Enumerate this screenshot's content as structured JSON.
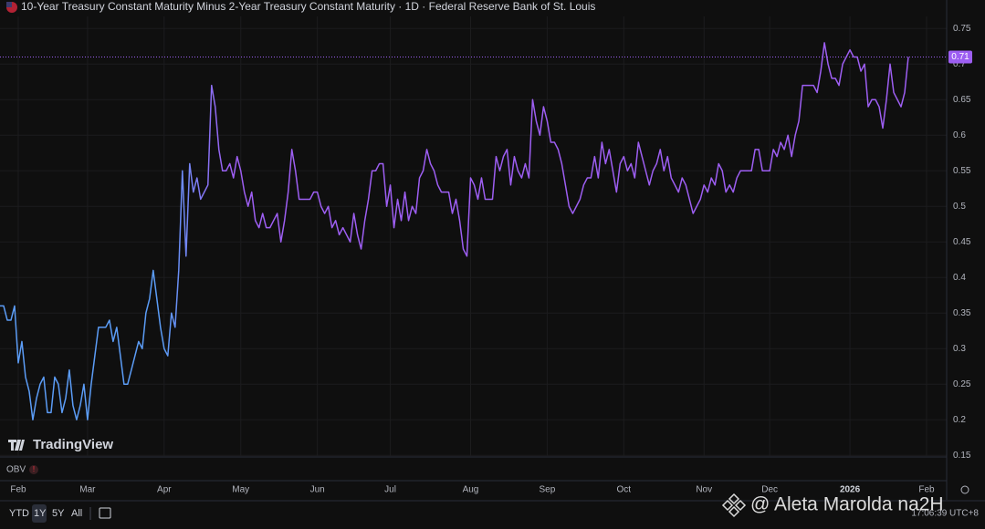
{
  "chart_data": {
    "type": "line",
    "title": "10-Year Treasury Constant Maturity Minus 2-Year Treasury Constant Maturity · 1D · Federal Reserve Bank of St. Louis",
    "brand": "TradingView",
    "indicator": "OBV",
    "ranges": [
      "YTD",
      "1Y",
      "5Y",
      "All"
    ],
    "clock": "17:06:39 UTC+8",
    "watermark": "@ Aleta Marolda na2H",
    "gradient": [
      "#5b9cf6",
      "#9d5ef2"
    ],
    "last_value": 0.71,
    "ylim": [
      0.149,
      0.767
    ],
    "yticks": [
      0.15,
      0.2,
      0.25,
      0.3,
      0.35,
      0.4,
      0.45,
      0.5,
      0.55,
      0.6,
      0.65,
      0.7,
      0.75
    ],
    "grid": true,
    "categories": [
      null,
      null,
      null,
      null,
      null,
      "Feb",
      null,
      null,
      null,
      null,
      null,
      null,
      null,
      null,
      null,
      null,
      null,
      null,
      null,
      null,
      null,
      null,
      null,
      null,
      "Mar",
      null,
      null,
      null,
      null,
      null,
      null,
      null,
      null,
      null,
      null,
      null,
      null,
      null,
      null,
      null,
      null,
      null,
      null,
      null,
      null,
      "Apr",
      null,
      null,
      null,
      null,
      null,
      null,
      null,
      null,
      null,
      null,
      null,
      null,
      null,
      null,
      null,
      null,
      null,
      null,
      null,
      null,
      "May",
      null,
      null,
      null,
      null,
      null,
      null,
      null,
      null,
      null,
      null,
      null,
      null,
      null,
      null,
      null,
      null,
      null,
      null,
      null,
      null,
      "Jun",
      null,
      null,
      null,
      null,
      null,
      null,
      null,
      null,
      null,
      null,
      null,
      null,
      null,
      null,
      null,
      null,
      null,
      null,
      null,
      "Jul",
      null,
      null,
      null,
      null,
      null,
      null,
      null,
      null,
      null,
      null,
      null,
      null,
      null,
      null,
      null,
      null,
      null,
      null,
      null,
      null,
      null,
      "Aug",
      null,
      null,
      null,
      null,
      null,
      null,
      null,
      null,
      null,
      null,
      null,
      null,
      null,
      null,
      null,
      null,
      null,
      null,
      null,
      null,
      "Sep",
      null,
      null,
      null,
      null,
      null,
      null,
      null,
      null,
      null,
      null,
      null,
      null,
      null,
      null,
      null,
      null,
      null,
      null,
      null,
      null,
      "Oct",
      null,
      null,
      null,
      null,
      null,
      null,
      null,
      null,
      null,
      null,
      null,
      null,
      null,
      null,
      null,
      null,
      null,
      null,
      null,
      null,
      null,
      "Nov",
      null,
      null,
      null,
      null,
      null,
      null,
      null,
      null,
      null,
      null,
      null,
      null,
      null,
      null,
      null,
      null,
      null,
      "Dec",
      null,
      null,
      null,
      null,
      null,
      null,
      null,
      null,
      null,
      null,
      null,
      null,
      null,
      null,
      null,
      null,
      null,
      null,
      null,
      null,
      null,
      "2026",
      null,
      null,
      null,
      null,
      null,
      null,
      null,
      null,
      null,
      null,
      null,
      null,
      null,
      null,
      null,
      null,
      null,
      null,
      null,
      null,
      "Feb",
      null
    ],
    "series": [
      {
        "name": "10Y-2Y",
        "values": [
          0.36,
          0.36,
          0.34,
          0.34,
          0.36,
          0.28,
          0.31,
          0.26,
          0.24,
          0.2,
          0.23,
          0.25,
          0.26,
          0.21,
          0.21,
          0.26,
          0.25,
          0.21,
          0.23,
          0.27,
          0.22,
          0.2,
          0.22,
          0.25,
          0.2,
          0.25,
          0.29,
          0.33,
          0.33,
          0.33,
          0.34,
          0.31,
          0.33,
          0.29,
          0.25,
          0.25,
          0.27,
          0.29,
          0.31,
          0.3,
          0.35,
          0.37,
          0.41,
          0.37,
          0.33,
          0.3,
          0.29,
          0.35,
          0.33,
          0.41,
          0.55,
          0.43,
          0.56,
          0.52,
          0.54,
          0.51,
          0.52,
          0.53,
          0.67,
          0.64,
          0.58,
          0.55,
          0.55,
          0.56,
          0.54,
          0.57,
          0.55,
          0.52,
          0.5,
          0.52,
          0.48,
          0.47,
          0.49,
          0.47,
          0.47,
          0.48,
          0.49,
          0.45,
          0.48,
          0.52,
          0.58,
          0.55,
          0.51,
          0.51,
          0.51,
          0.51,
          0.52,
          0.52,
          0.5,
          0.49,
          0.5,
          0.47,
          0.48,
          0.46,
          0.47,
          0.46,
          0.45,
          0.49,
          0.46,
          0.44,
          0.48,
          0.51,
          0.55,
          0.55,
          0.56,
          0.56,
          0.5,
          0.53,
          0.47,
          0.51,
          0.48,
          0.52,
          0.48,
          0.5,
          0.49,
          0.54,
          0.55,
          0.58,
          0.56,
          0.55,
          0.53,
          0.52,
          0.52,
          0.52,
          0.49,
          0.51,
          0.48,
          0.44,
          0.43,
          0.54,
          0.53,
          0.51,
          0.54,
          0.51,
          0.51,
          0.51,
          0.57,
          0.55,
          0.57,
          0.58,
          0.53,
          0.57,
          0.55,
          0.54,
          0.56,
          0.54,
          0.65,
          0.62,
          0.6,
          0.64,
          0.62,
          0.59,
          0.59,
          0.58,
          0.56,
          0.53,
          0.5,
          0.49,
          0.5,
          0.51,
          0.53,
          0.54,
          0.54,
          0.57,
          0.54,
          0.59,
          0.56,
          0.58,
          0.55,
          0.52,
          0.56,
          0.57,
          0.55,
          0.56,
          0.54,
          0.59,
          0.57,
          0.55,
          0.53,
          0.55,
          0.56,
          0.58,
          0.55,
          0.57,
          0.54,
          0.53,
          0.52,
          0.54,
          0.53,
          0.51,
          0.49,
          0.5,
          0.51,
          0.53,
          0.52,
          0.54,
          0.53,
          0.56,
          0.55,
          0.52,
          0.53,
          0.52,
          0.54,
          0.55,
          0.55,
          0.55,
          0.55,
          0.58,
          0.58,
          0.55,
          0.55,
          0.55,
          0.58,
          0.57,
          0.59,
          0.58,
          0.6,
          0.57,
          0.6,
          0.62,
          0.67,
          0.67,
          0.67,
          0.67,
          0.66,
          0.69,
          0.73,
          0.7,
          0.68,
          0.68,
          0.67,
          0.7,
          0.71,
          0.72,
          0.71,
          0.71,
          0.69,
          0.7,
          0.64,
          0.65,
          0.65,
          0.64,
          0.61,
          0.65,
          0.7,
          0.66,
          0.65,
          0.64,
          0.66,
          0.71,
          null,
          null,
          null,
          null,
          null,
          null
        ]
      }
    ]
  }
}
